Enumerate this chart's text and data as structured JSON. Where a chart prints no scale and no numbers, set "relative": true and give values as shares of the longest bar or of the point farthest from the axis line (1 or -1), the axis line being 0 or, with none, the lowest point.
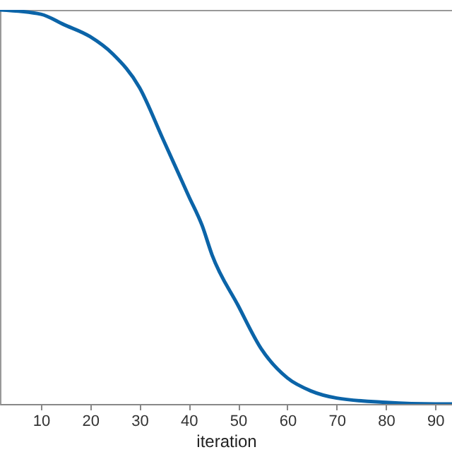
{
  "chart_data": {
    "type": "line",
    "xlabel": "iteration",
    "relative": true,
    "xlim": [
      1.7,
      93.4
    ],
    "xticks": [
      10,
      20,
      30,
      40,
      50,
      60,
      70,
      80,
      90
    ],
    "tick_labels": "x",
    "grid": false,
    "legend": false,
    "marker": "none",
    "line_style": "solid",
    "series": [
      {
        "color": "#0b64a8",
        "x": [
          1.7,
          10,
          14.6,
          20,
          24.6,
          30,
          34.7,
          40,
          42.7,
          44.7,
          50,
          54.7,
          60,
          64.8,
          70,
          80,
          90,
          93.4
        ],
        "values": [
          1,
          0.989,
          0.963,
          0.932,
          0.888,
          0.803,
          0.674,
          0.527,
          0.453,
          0.379,
          0.25,
          0.14,
          0.066,
          0.033,
          0.015,
          0.004,
          0,
          0
        ]
      }
    ]
  }
}
